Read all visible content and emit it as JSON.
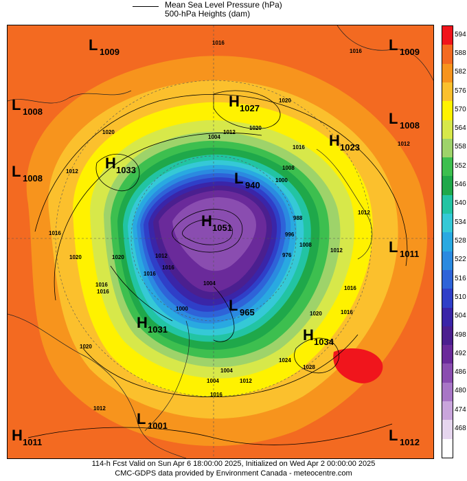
{
  "legend": {
    "line1": "Mean Sea Level Pressure (hPa)",
    "line2": "500-hPa Heights (dam)"
  },
  "footer": {
    "line1": "114-h Fcst Valid on Sun Apr  6 18:00:00 2025, Initialized on Wed Apr  2 00:00:00 2025",
    "line2": "CMC-GDPS data provided by Environment Canada - meteocentre.com"
  },
  "colorbar": {
    "levels": [
      {
        "label": "594",
        "color": "#f0151c"
      },
      {
        "label": "588",
        "color": "#f36a21"
      },
      {
        "label": "582",
        "color": "#f7941d"
      },
      {
        "label": "576",
        "color": "#fbc02d"
      },
      {
        "label": "570",
        "color": "#fff200"
      },
      {
        "label": "564",
        "color": "#d7e84a"
      },
      {
        "label": "558",
        "color": "#9ed36a"
      },
      {
        "label": "552",
        "color": "#3dbf4f"
      },
      {
        "label": "546",
        "color": "#1fa84a"
      },
      {
        "label": "540",
        "color": "#22c4a3"
      },
      {
        "label": "534",
        "color": "#35c9d6"
      },
      {
        "label": "528",
        "color": "#29a9e1"
      },
      {
        "label": "522",
        "color": "#2b8ae0"
      },
      {
        "label": "516",
        "color": "#2e63d8"
      },
      {
        "label": "510",
        "color": "#2f3fc8"
      },
      {
        "label": "504",
        "color": "#3a25a8"
      },
      {
        "label": "498",
        "color": "#4b1f8f"
      },
      {
        "label": "492",
        "color": "#6a2a9a"
      },
      {
        "label": "486",
        "color": "#8a4db0"
      },
      {
        "label": "480",
        "color": "#a876c6"
      },
      {
        "label": "474",
        "color": "#c9a5dc"
      },
      {
        "label": "468",
        "color": "#e6d6ee"
      },
      {
        "label": "",
        "color": "#ffffff"
      }
    ]
  },
  "pressure_centers": [
    {
      "type": "L",
      "value": "1009",
      "name": "low-1009-nw"
    },
    {
      "type": "L",
      "value": "1009",
      "name": "low-1009-ne"
    },
    {
      "type": "H",
      "value": "1027",
      "name": "high-1027"
    },
    {
      "type": "L",
      "value": "1008",
      "name": "low-1008-w1"
    },
    {
      "type": "L",
      "value": "1008",
      "name": "low-1008-e"
    },
    {
      "type": "H",
      "value": "1023",
      "name": "high-1023"
    },
    {
      "type": "H",
      "value": "1033",
      "name": "high-1033"
    },
    {
      "type": "L",
      "value": "1008",
      "name": "low-1008-w2"
    },
    {
      "type": "L",
      "value": "940",
      "name": "low-940"
    },
    {
      "type": "H",
      "value": "1051",
      "name": "high-1051"
    },
    {
      "type": "L",
      "value": "1011",
      "name": "low-1011-e"
    },
    {
      "type": "L",
      "value": "965",
      "name": "low-965"
    },
    {
      "type": "H",
      "value": "1031",
      "name": "high-1031"
    },
    {
      "type": "H",
      "value": "1034",
      "name": "high-1034"
    },
    {
      "type": "L",
      "value": "1001",
      "name": "low-1001"
    },
    {
      "type": "H",
      "value": "1011",
      "name": "high-1011-sw"
    },
    {
      "type": "L",
      "value": "1012",
      "name": "low-1012-se"
    }
  ],
  "isobar_labels": [
    "1016",
    "1016",
    "1020",
    "1020",
    "1012",
    "1016",
    "1020",
    "1016",
    "1012",
    "1004",
    "1012",
    "1020",
    "1016",
    "1008",
    "1000",
    "1012",
    "1016",
    "1020",
    "1012",
    "1016",
    "1020",
    "1016",
    "1016",
    "1024",
    "1028",
    "1020",
    "1012",
    "1004",
    "1004",
    "1012",
    "1016",
    "1016",
    "1004",
    "996",
    "988",
    "976",
    "1008",
    "1000",
    "1012"
  ]
}
